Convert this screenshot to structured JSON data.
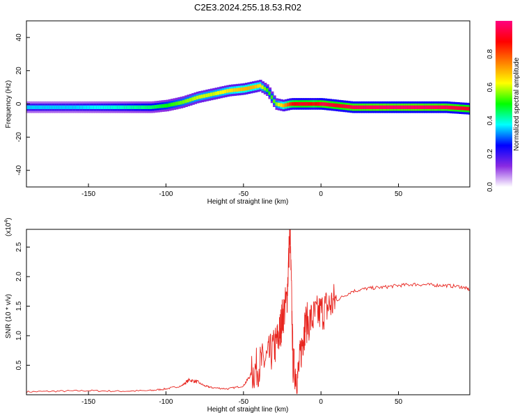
{
  "figure": {
    "title": "C2E3.2024.255.18.53.R02"
  },
  "chart_data": [
    {
      "type": "heatmap",
      "xlabel": "Height of straight line (km)",
      "ylabel": "Frequency (Hz)",
      "xlim": [
        -190,
        96
      ],
      "ylim": [
        -50,
        50
      ],
      "xticks": [
        -150,
        -100,
        -50,
        0,
        50
      ],
      "yticks": [
        -40,
        -20,
        0,
        20,
        40
      ],
      "grid": false,
      "colorbar": {
        "label": "Normalized spectral amplitude",
        "range": [
          0.0,
          1.0
        ],
        "ticks": [
          "0.0",
          "0.2",
          "0.4",
          "0.6",
          "0.8"
        ],
        "colormap": [
          "#ffffff",
          "#8a2be2",
          "#0000ff",
          "#00ffff",
          "#00ff00",
          "#ffff00",
          "#ff7f00",
          "#ff0000",
          "#ff0080"
        ]
      },
      "ridge": {
        "description_free": true,
        "x": [
          -190,
          -160,
          -130,
          -110,
          -100,
          -90,
          -80,
          -70,
          -60,
          -50,
          -45,
          -40,
          -35,
          -30,
          -25,
          -20,
          -15,
          -10,
          -5,
          0,
          10,
          20,
          40,
          60,
          80,
          96
        ],
        "y": [
          -2,
          -2,
          -2,
          -2,
          -1,
          1,
          4,
          6,
          8,
          9,
          10,
          11,
          8,
          0,
          -1,
          0,
          0,
          0,
          0,
          0,
          -1,
          -2,
          -2,
          -2,
          -2,
          -3
        ],
        "amplitude": [
          0.35,
          0.35,
          0.4,
          0.45,
          0.5,
          0.55,
          0.6,
          0.6,
          0.65,
          0.7,
          0.7,
          0.65,
          0.5,
          0.55,
          0.7,
          0.85,
          0.9,
          0.9,
          0.85,
          0.95,
          0.9,
          0.95,
          0.97,
          0.97,
          0.95,
          0.9
        ]
      }
    },
    {
      "type": "line",
      "xlabel": "Height of straight line (km)",
      "ylabel": "SNR (10 * v/v)",
      "yscale_label": "(x10^4)",
      "xlim": [
        -190,
        96
      ],
      "ylim": [
        0,
        2.8
      ],
      "xticks": [
        -150,
        -100,
        -50,
        0,
        50
      ],
      "yticks": [
        0.5,
        1.0,
        1.5,
        2.0,
        2.5
      ],
      "grid": false,
      "series": [
        {
          "color": "#e8251f",
          "x": [
            -190,
            -170,
            -150,
            -130,
            -110,
            -100,
            -90,
            -85,
            -80,
            -75,
            -70,
            -60,
            -50,
            -45,
            -40,
            -35,
            -30,
            -27,
            -25,
            -22,
            -20,
            -18,
            -15,
            -12,
            -10,
            -5,
            0,
            5,
            10,
            20,
            30,
            40,
            50,
            60,
            70,
            80,
            90,
            96
          ],
          "y": [
            0.05,
            0.06,
            0.07,
            0.06,
            0.07,
            0.1,
            0.15,
            0.25,
            0.22,
            0.15,
            0.12,
            0.1,
            0.15,
            0.35,
            0.5,
            0.6,
            0.8,
            1.0,
            1.3,
            1.6,
            2.8,
            0.5,
            0.3,
            0.9,
            1.2,
            1.3,
            1.4,
            1.5,
            1.6,
            1.75,
            1.8,
            1.82,
            1.85,
            1.87,
            1.86,
            1.85,
            1.83,
            1.78
          ]
        }
      ]
    }
  ]
}
